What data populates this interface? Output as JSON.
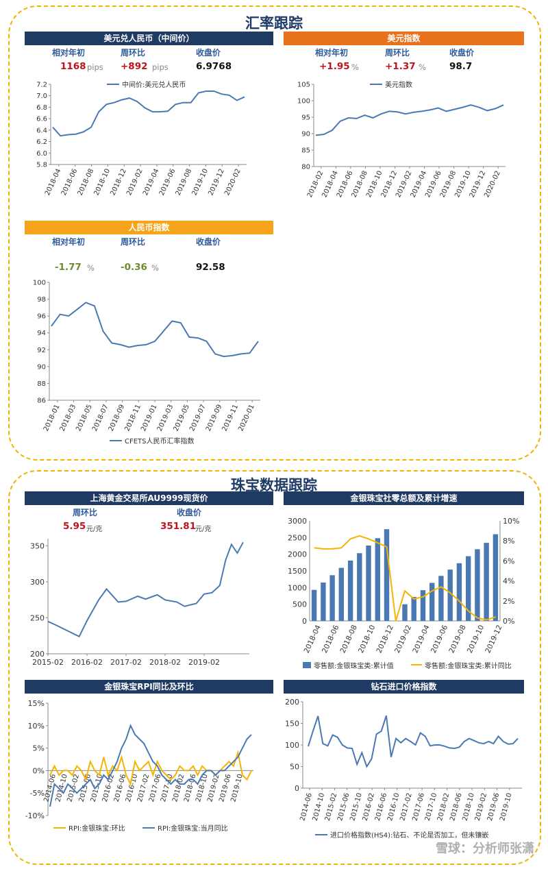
{
  "sections": {
    "fx_title": "汇率跟踪",
    "jewelry_title": "珠宝数据跟踪"
  },
  "usdcny": {
    "title": "美元兑人民币（中间价）",
    "label_ytd": "相对年初",
    "label_wow": "周环比",
    "label_close": "收盘价",
    "ytd": "1168",
    "ytd_unit": "pips",
    "wow": "+892",
    "wow_unit": "pips",
    "close": "6.9768"
  },
  "dxy": {
    "title": "美元指数",
    "label_ytd": "相对年初",
    "label_wow": "周环比",
    "label_close": "收盘价",
    "ytd": "+1.95",
    "ytd_unit": "%",
    "wow": "+1.37",
    "wow_unit": "%",
    "close": "98.7"
  },
  "cny_index": {
    "title": "人民币指数",
    "label_ytd": "相对年初",
    "label_wow": "周环比",
    "label_close": "收盘价",
    "ytd": "-1.77",
    "ytd_unit": "%",
    "wow": "-0.36",
    "wow_unit": "%",
    "close": "92.58"
  },
  "gold": {
    "title": "上海黄金交易所AU9999现货价",
    "label_wow": "周环比",
    "label_close": "收盘价",
    "wow": "5.95",
    "wow_unit": "元/克",
    "close": "351.81",
    "close_unit": "元/克"
  },
  "retail": {
    "title": "金银珠宝社零总额及累计增速"
  },
  "rpi": {
    "title": "金银珠宝RPI同比及环比"
  },
  "diamond": {
    "title": "钻石进口价格指数"
  },
  "watermark": "雪球：分析师张潇",
  "colors": {
    "line_blue": "#4a78b3",
    "bar_blue": "#4a78b3",
    "gold_line": "#f5b400",
    "navy": "#1f3b63",
    "orange": "#e8711c",
    "amber": "#f5a41b"
  },
  "chart_data": [
    {
      "id": "usdcny",
      "type": "line",
      "series": [
        {
          "name": "中间价:美元兑人民币",
          "x": [
            "2018-01",
            "2018-02",
            "2018-03",
            "2018-04",
            "2018-05",
            "2018-06",
            "2018-07",
            "2018-08",
            "2018-09",
            "2018-10",
            "2018-11",
            "2018-12",
            "2019-01",
            "2019-02",
            "2019-03",
            "2019-04",
            "2019-05",
            "2019-06",
            "2019-07",
            "2019-08",
            "2019-09",
            "2019-10",
            "2019-11",
            "2019-12",
            "2020-01",
            "2020-02"
          ],
          "values": [
            6.45,
            6.3,
            6.32,
            6.33,
            6.37,
            6.45,
            6.72,
            6.85,
            6.88,
            6.93,
            6.96,
            6.9,
            6.79,
            6.72,
            6.72,
            6.73,
            6.85,
            6.88,
            6.88,
            7.05,
            7.08,
            7.08,
            7.03,
            7.01,
            6.92,
            6.98
          ]
        }
      ],
      "x_ticks": [
        "2018-04",
        "2018-06",
        "2018-08",
        "2018-10",
        "2018-12",
        "2019-02",
        "2019-04",
        "2019-06",
        "2019-08",
        "2019-10",
        "2019-12",
        "2020-02"
      ],
      "ylim": [
        5.8,
        7.2
      ],
      "y_ticks": [
        "5.8",
        "6.0",
        "6.2",
        "6.4",
        "6.6",
        "6.8",
        "7.0",
        "7.2"
      ]
    },
    {
      "id": "dxy",
      "type": "line",
      "series": [
        {
          "name": "美元指数",
          "x": [
            "2018-02",
            "2018-03",
            "2018-04",
            "2018-05",
            "2018-06",
            "2018-07",
            "2018-08",
            "2018-09",
            "2018-10",
            "2018-11",
            "2018-12",
            "2019-01",
            "2019-02",
            "2019-03",
            "2019-04",
            "2019-05",
            "2019-06",
            "2019-07",
            "2019-08",
            "2019-09",
            "2019-10",
            "2019-12",
            "2020-01",
            "2020-02"
          ],
          "values": [
            89.5,
            89.8,
            91.0,
            93.8,
            94.8,
            94.6,
            95.6,
            94.8,
            96.0,
            96.8,
            96.6,
            96.0,
            96.5,
            96.8,
            97.2,
            97.8,
            96.8,
            97.4,
            98.0,
            98.7,
            98.0,
            97.0,
            97.6,
            98.7
          ]
        }
      ],
      "x_ticks": [
        "2018-02",
        "2018-04",
        "2018-06",
        "2018-08",
        "2018-10",
        "2018-12",
        "2019-02",
        "2019-04",
        "2019-06",
        "2019-08",
        "2019-10",
        "2019-12",
        "2020-02"
      ],
      "ylim": [
        80,
        105
      ],
      "y_ticks": [
        "80",
        "85",
        "90",
        "95",
        "100",
        "105"
      ]
    },
    {
      "id": "cny_index",
      "type": "line",
      "series": [
        {
          "name": "CFETS人民币汇率指数",
          "x": [
            "2018-01",
            "2018-02",
            "2018-03",
            "2018-04",
            "2018-05",
            "2018-06",
            "2018-07",
            "2018-08",
            "2018-09",
            "2018-10",
            "2018-11",
            "2018-12",
            "2019-01",
            "2019-02",
            "2019-03",
            "2019-04",
            "2019-05",
            "2019-06",
            "2019-07",
            "2019-08",
            "2019-09",
            "2019-10",
            "2019-11",
            "2019-12",
            "2020-01"
          ],
          "values": [
            94.8,
            96.2,
            96.0,
            96.8,
            97.6,
            97.2,
            94.2,
            92.8,
            92.6,
            92.3,
            92.5,
            92.6,
            93.0,
            94.2,
            95.4,
            95.2,
            93.5,
            93.4,
            93.0,
            91.5,
            91.2,
            91.3,
            91.5,
            91.6,
            93.0
          ]
        }
      ],
      "x_ticks": [
        "2018-01",
        "2018-03",
        "2018-05",
        "2018-07",
        "2018-09",
        "2018-11",
        "2019-01",
        "2019-03",
        "2019-05",
        "2019-07",
        "2019-09",
        "2019-11",
        "2020-01"
      ],
      "ylim": [
        86,
        100
      ],
      "y_ticks": [
        "86",
        "88",
        "90",
        "92",
        "94",
        "96",
        "98",
        "100"
      ]
    },
    {
      "id": "gold",
      "type": "line",
      "series": [
        {
          "name": "AU9999",
          "x": [
            2015.0,
            2015.2,
            2015.5,
            2015.8,
            2016.0,
            2016.3,
            2016.5,
            2016.8,
            2017.0,
            2017.3,
            2017.5,
            2017.8,
            2018.0,
            2018.3,
            2018.5,
            2018.8,
            2019.0,
            2019.2,
            2019.4,
            2019.55,
            2019.7,
            2019.85,
            2020.0
          ],
          "values": [
            245,
            240,
            232,
            224,
            246,
            275,
            290,
            272,
            273,
            280,
            276,
            282,
            275,
            272,
            266,
            270,
            283,
            285,
            295,
            330,
            352,
            340,
            355
          ]
        }
      ],
      "x_ticks": [
        "2015-02",
        "2016-02",
        "2017-02",
        "2018-02",
        "2019-02"
      ],
      "ylim": [
        200,
        360
      ],
      "y_ticks": [
        "200",
        "250",
        "300",
        "350"
      ]
    },
    {
      "id": "retail",
      "type": "bar",
      "categories": [
        "2018-03",
        "2018-04",
        "2018-05",
        "2018-06",
        "2018-07",
        "2018-08",
        "2018-09",
        "2018-10",
        "2018-11",
        "2018-12",
        "2019-02",
        "2019-03",
        "2019-04",
        "2019-05",
        "2019-06",
        "2019-07",
        "2019-08",
        "2019-09",
        "2019-10",
        "2019-11",
        "2019-12"
      ],
      "series": [
        {
          "name": "零售额:金银珠宝类:累计值",
          "values": [
            930,
            1150,
            1370,
            1590,
            1810,
            2030,
            2260,
            2480,
            2750,
            0,
            500,
            720,
            920,
            1140,
            1350,
            1540,
            1730,
            1940,
            2150,
            2340,
            2600
          ]
        },
        {
          "name": "零售额:金银珠宝类:累计同比",
          "values": [
            7.3,
            7.2,
            7.2,
            7.3,
            8.2,
            8.5,
            8.2,
            7.8,
            7.4,
            0,
            3.0,
            2.2,
            2.4,
            3.0,
            3.4,
            2.8,
            2.0,
            1.0,
            0.3,
            0.1,
            0.4
          ]
        }
      ],
      "x_ticks": [
        "2018-04",
        "2018-06",
        "2018-08",
        "2018-10",
        "2018-12",
        "2019-02",
        "2019-04",
        "2019-06",
        "2019-08",
        "2019-10",
        "2019-12"
      ],
      "ylim": [
        0,
        3000
      ],
      "y_ticks": [
        "0",
        "500",
        "1000",
        "1500",
        "2000",
        "2500",
        "3000"
      ],
      "y2lim": [
        0,
        10
      ],
      "y2_ticks": [
        "0%",
        "2%",
        "4%",
        "6%",
        "8%",
        "10%"
      ]
    },
    {
      "id": "rpi",
      "type": "line",
      "series": [
        {
          "name": "RPI:金银珠宝:环比",
          "values": [
            -1,
            1,
            -1,
            0,
            0,
            -1,
            1,
            0,
            -2,
            2,
            0,
            -1,
            3,
            -1,
            1,
            0,
            3,
            -1,
            -3,
            2,
            0,
            1,
            2,
            -1,
            2,
            0,
            -1,
            -2,
            -1,
            1,
            0,
            0,
            1,
            -1,
            1,
            0,
            0,
            -1,
            0,
            1,
            2,
            1,
            4,
            -1,
            -2,
            0
          ]
        },
        {
          "name": "RPI:金银珠宝:当月同比",
          "values": [
            -8,
            -3,
            -4,
            -5,
            -3,
            -4,
            -5,
            -4,
            -3,
            -2,
            -4,
            -3,
            -1,
            -2,
            0,
            2,
            5,
            7,
            10,
            8,
            7,
            6,
            4,
            2,
            1,
            -1,
            -2,
            -3,
            -2,
            -3,
            -3,
            -2,
            -2,
            -3,
            -1,
            0,
            0,
            -1,
            0,
            0,
            1,
            2,
            3,
            5,
            7,
            8
          ]
        }
      ],
      "x_ticks": [
        "2014-06",
        "2014-10",
        "2015-02",
        "2015-06",
        "2015-10",
        "2016-02",
        "2016-06",
        "2016-10",
        "2017-02",
        "2017-06",
        "2017-10",
        "2018-02",
        "2018-06",
        "2018-10",
        "2019-02",
        "2019-06",
        "2019-10"
      ],
      "ylim": [
        -10,
        15
      ],
      "y_ticks": [
        "-10%",
        "-5%",
        "0%",
        "5%",
        "10%",
        "15%"
      ]
    },
    {
      "id": "diamond",
      "type": "line",
      "series": [
        {
          "name": "进口价格指数(HS4):钻石、不论是否加工，但未镶嵌",
          "values": [
            97,
            133,
            167,
            103,
            98,
            123,
            118,
            100,
            93,
            92,
            55,
            82,
            50,
            68,
            125,
            132,
            168,
            72,
            115,
            105,
            115,
            108,
            100,
            128,
            120,
            98,
            100,
            100,
            97,
            93,
            92,
            95,
            108,
            115,
            110,
            105,
            103,
            108,
            103,
            120,
            108,
            102,
            103,
            115
          ]
        }
      ],
      "x_ticks": [
        "2014-06",
        "2014-10",
        "2015-02",
        "2015-06",
        "2015-10",
        "2016-02",
        "2016-06",
        "2016-10",
        "2017-02",
        "2017-06",
        "2017-10",
        "2018-02",
        "2018-06",
        "2018-10",
        "2019-02",
        "2019-06",
        "2019-10"
      ],
      "ylim": [
        0,
        200
      ],
      "y_ticks": [
        "0",
        "50",
        "100",
        "150",
        "200"
      ]
    }
  ]
}
